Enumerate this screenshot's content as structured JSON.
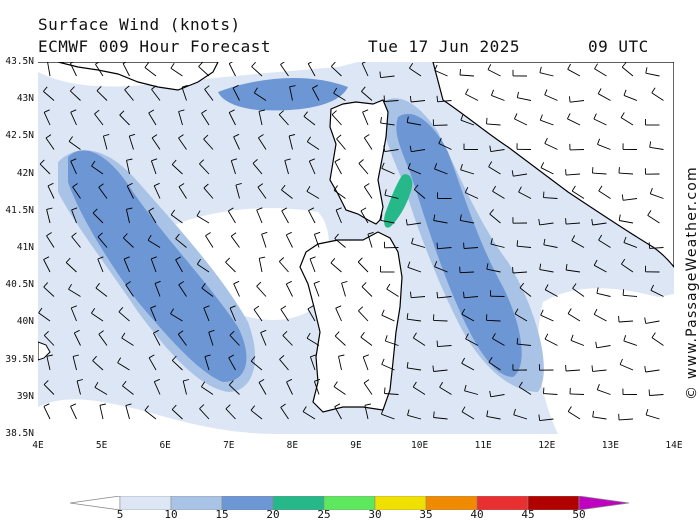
{
  "header": {
    "title": "Surface Wind (knots)",
    "model_line": "ECMWF 009 Hour Forecast",
    "date": "Tue 17 Jun 2025",
    "time": "09 UTC"
  },
  "credit": "© www.PassageWeather.com",
  "map": {
    "lat_labels": [
      "43.5N",
      "43N",
      "42.5N",
      "42N",
      "41.5N",
      "41N",
      "40.5N",
      "40N",
      "39.5N",
      "39N",
      "38.5N"
    ],
    "lon_labels": [
      "4E",
      "5E",
      "6E",
      "7E",
      "8E",
      "9E",
      "10E",
      "11E",
      "12E",
      "13E",
      "14E"
    ],
    "lat_range": [
      38.5,
      43.5
    ],
    "lon_range": [
      4,
      14
    ],
    "regions": [
      "Corsica",
      "Sardinia",
      "Italy"
    ]
  },
  "legend": {
    "units": "knots",
    "labels": [
      "5",
      "10",
      "15",
      "20",
      "25",
      "30",
      "35",
      "40",
      "45",
      "50"
    ],
    "colors": [
      "#ffffff",
      "#dce6f5",
      "#a9c3e6",
      "#6d96d4",
      "#26b888",
      "#5ee85e",
      "#f0e000",
      "#f08a00",
      "#e83030",
      "#b00000",
      "#c000c0"
    ]
  }
}
